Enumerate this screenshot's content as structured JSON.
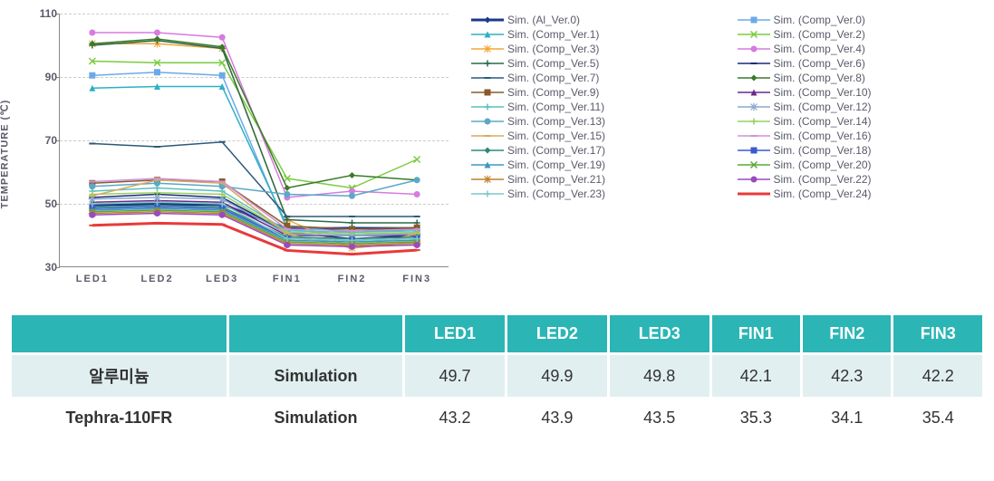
{
  "chart": {
    "type": "line",
    "y_label": "TEMPERATURE (℃)",
    "ylim": [
      30,
      110
    ],
    "y_ticks": [
      30,
      50,
      70,
      90,
      110
    ],
    "categories": [
      "LED1",
      "LED2",
      "LED3",
      "FIN1",
      "FIN2",
      "FIN3"
    ],
    "background_color": "#ffffff",
    "grid_color": "#cccccc",
    "axis_color": "#888888",
    "tick_fontsize": 12,
    "tick_color": "#5a5a6a",
    "series": [
      {
        "name": "Sim. (Al_Ver.0)",
        "color": "#1a3a8a",
        "width": 3,
        "marker": "diamond",
        "values": [
          49.7,
          49.9,
          49.8,
          42.1,
          42.3,
          42.2
        ]
      },
      {
        "name": "Sim. (Comp_Ver.0)",
        "color": "#6da9e8",
        "width": 1.5,
        "marker": "square",
        "values": [
          90.5,
          91.5,
          90.5,
          42.0,
          40.0,
          41.0
        ]
      },
      {
        "name": "Sim. (Comp_Ver.1)",
        "color": "#2db0c4",
        "width": 1.5,
        "marker": "triangle",
        "values": [
          86.5,
          87.0,
          87.0,
          43.0,
          41.0,
          42.0
        ]
      },
      {
        "name": "Sim. (Comp_Ver.2)",
        "color": "#7acc3e",
        "width": 1.5,
        "marker": "x",
        "values": [
          95.0,
          94.5,
          94.5,
          58.0,
          55.0,
          64.0
        ]
      },
      {
        "name": "Sim. (Comp_Ver.3)",
        "color": "#f2a63a",
        "width": 1.5,
        "marker": "star",
        "values": [
          100.5,
          100.5,
          99.0,
          45.0,
          36.0,
          38.0
        ]
      },
      {
        "name": "Sim. (Comp_Ver.4)",
        "color": "#d87ae0",
        "width": 1.5,
        "marker": "circle",
        "values": [
          104.0,
          104.0,
          102.5,
          52.0,
          54.0,
          53.0
        ]
      },
      {
        "name": "Sim. (Comp_Ver.5)",
        "color": "#2a6a4a",
        "width": 1.5,
        "marker": "plus",
        "values": [
          100.0,
          101.5,
          99.0,
          45.0,
          44.0,
          44.0
        ]
      },
      {
        "name": "Sim. (Comp_Ver.6)",
        "color": "#1a2a7a",
        "width": 1.5,
        "marker": "dash",
        "values": [
          52.0,
          53.0,
          52.0,
          41.0,
          39.0,
          40.0
        ]
      },
      {
        "name": "Sim. (Comp_Ver.7)",
        "color": "#2a5a7a",
        "width": 1.5,
        "marker": "dash",
        "values": [
          69.0,
          68.0,
          69.5,
          46.0,
          46.0,
          46.0
        ]
      },
      {
        "name": "Sim. (Comp_Ver.8)",
        "color": "#3a7a2a",
        "width": 1.5,
        "marker": "diamond",
        "values": [
          100.5,
          102.0,
          99.5,
          55.0,
          59.0,
          57.5
        ]
      },
      {
        "name": "Sim. (Comp_Ver.9)",
        "color": "#8a5a2a",
        "width": 1.5,
        "marker": "square",
        "values": [
          56.5,
          57.5,
          57.0,
          43.0,
          42.0,
          42.5
        ]
      },
      {
        "name": "Sim. (Comp_Ver.10)",
        "color": "#6a2a8a",
        "width": 1.5,
        "marker": "triangle",
        "values": [
          50.5,
          51.0,
          50.5,
          40.0,
          40.0,
          40.0
        ]
      },
      {
        "name": "Sim. (Comp_Ver.11)",
        "color": "#5ac0c0",
        "width": 1.5,
        "marker": "plus",
        "values": [
          54.0,
          55.0,
          54.0,
          41.5,
          41.0,
          41.5
        ]
      },
      {
        "name": "Sim. (Comp_Ver.12)",
        "color": "#8aa8d0",
        "width": 1.5,
        "marker": "star",
        "values": [
          51.5,
          52.0,
          51.5,
          40.5,
          40.0,
          40.5
        ]
      },
      {
        "name": "Sim. (Comp_Ver.13)",
        "color": "#5aa8c8",
        "width": 1.5,
        "marker": "circle",
        "values": [
          55.5,
          56.5,
          55.5,
          53.0,
          52.5,
          57.5
        ]
      },
      {
        "name": "Sim. (Comp_Ver.14)",
        "color": "#98d060",
        "width": 1.5,
        "marker": "plus",
        "values": [
          53.0,
          53.5,
          53.0,
          41.0,
          40.5,
          41.0
        ]
      },
      {
        "name": "Sim. (Comp_Ver.15)",
        "color": "#d8a860",
        "width": 1.5,
        "marker": "dash",
        "values": [
          52.5,
          57.5,
          56.5,
          40.5,
          36.0,
          40.5
        ]
      },
      {
        "name": "Sim. (Comp_Ver.16)",
        "color": "#d090d8",
        "width": 1.5,
        "marker": "dash",
        "values": [
          57.0,
          58.0,
          57.0,
          42.0,
          41.5,
          42.0
        ]
      },
      {
        "name": "Sim. (Comp_Ver.17)",
        "color": "#2a8a7a",
        "width": 1.5,
        "marker": "diamond",
        "values": [
          49.0,
          49.5,
          49.0,
          39.5,
          39.0,
          39.5
        ]
      },
      {
        "name": "Sim. (Comp_Ver.18)",
        "color": "#3a5ad0",
        "width": 1.5,
        "marker": "square",
        "values": [
          48.5,
          49.0,
          48.5,
          39.0,
          38.5,
          39.0
        ]
      },
      {
        "name": "Sim. (Comp_Ver.19)",
        "color": "#3a98c0",
        "width": 1.5,
        "marker": "triangle",
        "values": [
          48.0,
          48.5,
          48.0,
          38.5,
          38.0,
          38.5
        ]
      },
      {
        "name": "Sim. (Comp_Ver.20)",
        "color": "#5aa83a",
        "width": 1.5,
        "marker": "x",
        "values": [
          47.5,
          48.0,
          47.5,
          38.0,
          37.5,
          38.0
        ]
      },
      {
        "name": "Sim. (Comp_Ver.21)",
        "color": "#c0802a",
        "width": 1.5,
        "marker": "star",
        "values": [
          47.0,
          47.5,
          47.0,
          37.5,
          37.0,
          37.5
        ]
      },
      {
        "name": "Sim. (Comp_Ver.22)",
        "color": "#9a4ac0",
        "width": 1.5,
        "marker": "circle",
        "values": [
          46.5,
          47.0,
          46.5,
          37.0,
          36.5,
          37.0
        ]
      },
      {
        "name": "Sim. (Comp_Ver.23)",
        "color": "#7ac8c8",
        "width": 1.5,
        "marker": "plus",
        "values": [
          50.0,
          50.5,
          50.0,
          39.0,
          38.5,
          39.0
        ]
      },
      {
        "name": "Sim. (Comp_Ver.24)",
        "color": "#e83a3a",
        "width": 3,
        "marker": "dash",
        "values": [
          43.2,
          43.9,
          43.5,
          35.3,
          34.1,
          35.4
        ]
      }
    ]
  },
  "table": {
    "header_bg": "#2cb5b5",
    "row_bg_odd": "#e1eff0",
    "row_bg_even": "#ffffff",
    "text_color": "#333333",
    "header_text_color": "#ffffff",
    "columns": [
      "",
      "",
      "LED1",
      "LED2",
      "LED3",
      "FIN1",
      "FIN2",
      "FIN3"
    ],
    "rows": [
      {
        "label": "알루미늄",
        "type": "Simulation",
        "values": [
          "49.7",
          "49.9",
          "49.8",
          "42.1",
          "42.3",
          "42.2"
        ]
      },
      {
        "label": "Tephra-110FR",
        "type": "Simulation",
        "values": [
          "43.2",
          "43.9",
          "43.5",
          "35.3",
          "34.1",
          "35.4"
        ]
      }
    ]
  }
}
